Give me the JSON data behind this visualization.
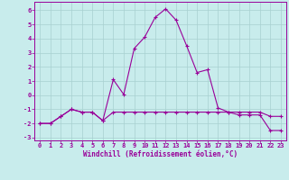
{
  "xlabel": "Windchill (Refroidissement éolien,°C)",
  "ylabel": "",
  "bg_color": "#c8ecec",
  "grid_color": "#a8d0d0",
  "line_color": "#990099",
  "xlim": [
    -0.5,
    23.5
  ],
  "ylim": [
    -3.2,
    6.6
  ],
  "yticks": [
    -3,
    -2,
    -1,
    0,
    1,
    2,
    3,
    4,
    5,
    6
  ],
  "xticks": [
    0,
    1,
    2,
    3,
    4,
    5,
    6,
    7,
    8,
    9,
    10,
    11,
    12,
    13,
    14,
    15,
    16,
    17,
    18,
    19,
    20,
    21,
    22,
    23
  ],
  "series1_x": [
    0,
    1,
    2,
    3,
    4,
    5,
    6,
    7,
    8,
    9,
    10,
    11,
    12,
    13,
    14,
    15,
    16,
    17,
    18,
    19,
    20,
    21,
    22,
    23
  ],
  "series1_y": [
    -2.0,
    -2.0,
    -1.5,
    -1.0,
    -1.2,
    -1.2,
    -1.8,
    -1.2,
    -1.2,
    -1.2,
    -1.2,
    -1.2,
    -1.2,
    -1.2,
    -1.2,
    -1.2,
    -1.2,
    -1.2,
    -1.2,
    -1.2,
    -1.2,
    -1.2,
    -1.5,
    -1.5
  ],
  "series2_x": [
    0,
    1,
    2,
    3,
    4,
    5,
    6,
    7,
    8,
    9,
    10,
    11,
    12,
    13,
    14,
    15,
    16,
    17,
    18,
    19,
    20,
    21,
    22,
    23
  ],
  "series2_y": [
    -2.0,
    -2.0,
    -1.5,
    -1.0,
    -1.2,
    -1.2,
    -1.8,
    1.1,
    0.05,
    3.3,
    4.1,
    5.5,
    6.1,
    5.3,
    3.5,
    1.6,
    1.8,
    -0.9,
    -1.2,
    -1.4,
    -1.4,
    -1.4,
    -2.5,
    -2.5
  ],
  "xlabel_fontsize": 5.5,
  "tick_fontsize": 5.0
}
